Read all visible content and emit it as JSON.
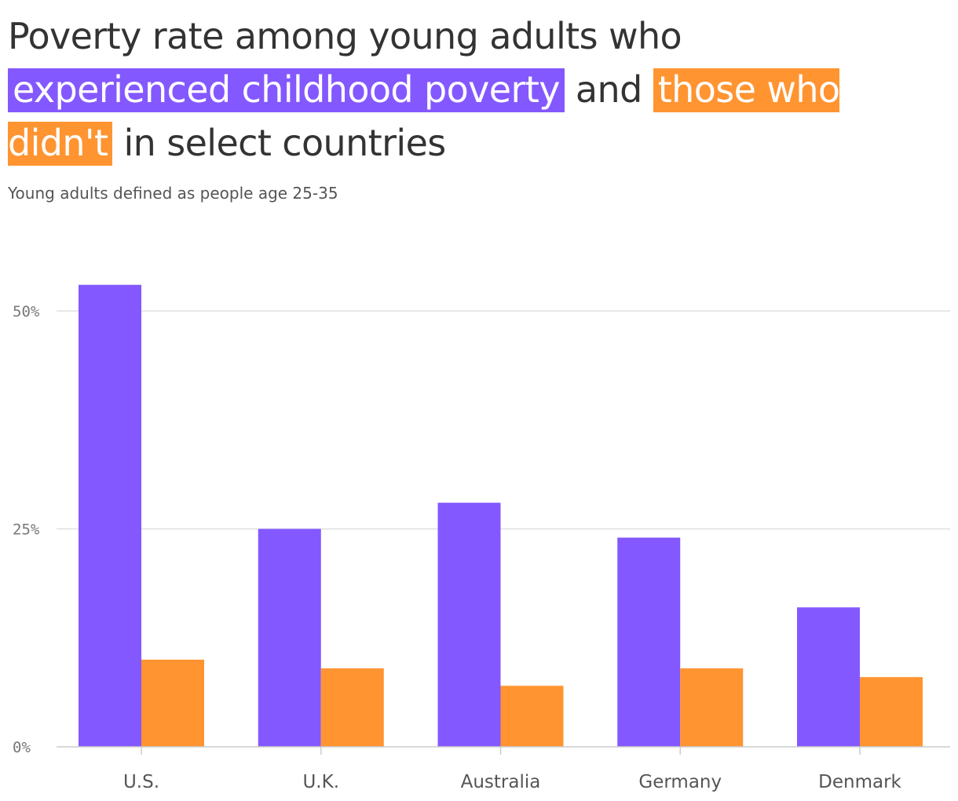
{
  "header": {
    "title_part1": "Poverty rate among young adults who",
    "title_highlight_a": "experienced childhood poverty",
    "title_part2": "and",
    "title_highlight_b": "those who didn't",
    "title_part3": "in select countries",
    "subtitle": "Young adults defined as people age 25-35"
  },
  "colors": {
    "series_a": "#8458ff",
    "series_b": "#ff9431",
    "grid": "#e0e0e0",
    "axis": "#cccccc"
  },
  "chart_data": {
    "type": "bar",
    "categories": [
      "U.S.",
      "U.K.",
      "Australia",
      "Germany",
      "Denmark"
    ],
    "series": [
      {
        "key": "experienced",
        "color": "#8458ff",
        "values": [
          53,
          25,
          28,
          24,
          16
        ]
      },
      {
        "key": "did_not",
        "color": "#ff9431",
        "values": [
          10,
          9,
          7,
          9,
          8
        ]
      }
    ],
    "y_ticks": [
      0,
      25,
      50
    ],
    "y_tick_labels": [
      "0%",
      "25%",
      "50%"
    ],
    "ylim": [
      0,
      53
    ],
    "grid": true,
    "legend": "in title"
  }
}
